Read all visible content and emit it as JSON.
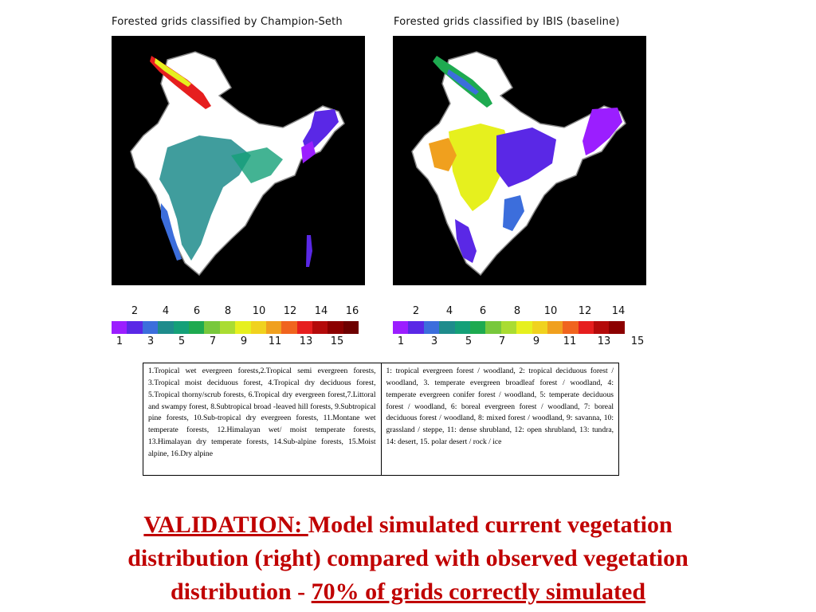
{
  "maps": [
    {
      "title": "Forested grids classified by Champion-Seth",
      "scale_top": [
        "2",
        "4",
        "6",
        "8",
        "10",
        "12",
        "14",
        "16"
      ],
      "scale_bottom": [
        "1",
        "3",
        "5",
        "7",
        "9",
        "11",
        "13",
        "15"
      ],
      "colors": [
        "#9b1eff",
        "#5a28e6",
        "#3c6edc",
        "#1e8c8c",
        "#14a078",
        "#1eaa50",
        "#78c83c",
        "#aadc32",
        "#e6f01e",
        "#f0d21e",
        "#f0a01e",
        "#f0641e",
        "#e61e1e",
        "#b40a0a",
        "#8c0000",
        "#6e0000"
      ]
    },
    {
      "title": "Forested grids classified by IBIS (baseline)",
      "scale_top": [
        "2",
        "4",
        "6",
        "8",
        "10",
        "12",
        "14"
      ],
      "scale_bottom": [
        "1",
        "3",
        "5",
        "7",
        "9",
        "11",
        "13",
        "15"
      ],
      "colors": [
        "#9b1eff",
        "#5a28e6",
        "#3c6edc",
        "#1e8c8c",
        "#14a078",
        "#1eaa50",
        "#78c83c",
        "#aadc32",
        "#e6f01e",
        "#f0d21e",
        "#f0a01e",
        "#f0641e",
        "#e61e1e",
        "#b40a0a",
        "#8c0000"
      ]
    }
  ],
  "legend": {
    "left": "1.Tropical wet evergreen forests,2.Tropical semi evergreen forests, 3.Tropical moist deciduous forest, 4.Tropical dry deciduous forest, 5.Tropical thorny/scrub forests, 6.Tropical dry evergreen forest,7.Littoral and swampy forest, 8.Subtropical broad -leaved hill forests, 9.Subtropical pine forests, 10.Sub-tropical dry evergreen forests, 11.Montane wet temperate forests, 12.Himalayan wet/ moist temperate forests, 13.Himalayan dry temperate forests, 14.Sub-alpine forests, 15.Moist alpine, 16.Dry alpine",
    "right": "1: tropical evergreen forest / woodland, 2: tropical deciduous forest / woodland, 3. temperate evergreen broadleaf forest / woodland, 4: temperate evergreen conifer forest / woodland, 5: temperate deciduous forest / woodland, 6: boreal evergreen forest / woodland, 7: boreal deciduous forest / woodland, 8: mixed forest / woodland, 9: savanna, 10: grassland / steppe, 11: dense shrubland, 12: open shrubland, 13: tundra, 14: desert, 15. polar desert / rock / ice"
  },
  "caption": {
    "label": "VALIDATION: ",
    "line1": "Model simulated current vegetation",
    "line2": "distribution (right) compared with observed vegetation",
    "line3_prefix": "distribution  - ",
    "highlight": "70% of grids correctly simulated"
  },
  "colors": {
    "caption": "#c00000",
    "map_bg": "#000000",
    "land": "#ffffff"
  }
}
